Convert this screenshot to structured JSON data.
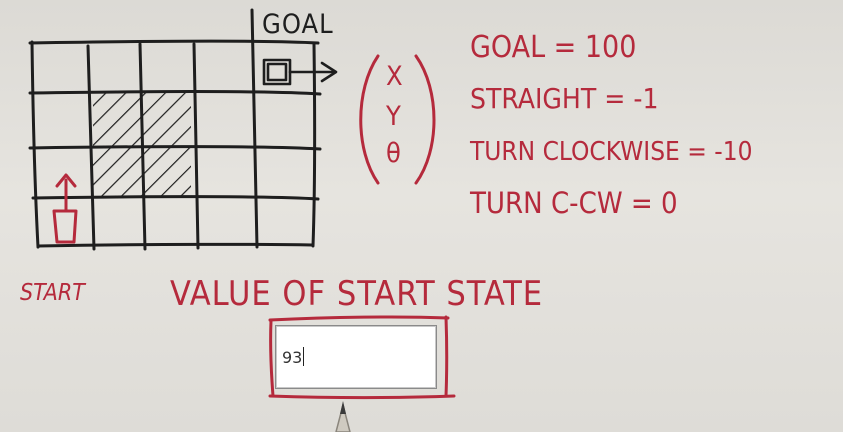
{
  "labels": {
    "goal_top": "GOAL",
    "start": "START",
    "question": "VALUE OF START STATE"
  },
  "state_vector": [
    "X",
    "Y",
    "θ"
  ],
  "rewards": {
    "goal": "GOAL = 100",
    "straight": "STRAIGHT = -1",
    "turn_cw": "TURN CLOCKWISE = -10",
    "turn_ccw": "TURN C-CW = 0"
  },
  "answer": {
    "value": "93"
  },
  "colors": {
    "ink_black": "#1e1e1e",
    "ink_red": "#b52a3c",
    "paper": "#e2e0db"
  }
}
